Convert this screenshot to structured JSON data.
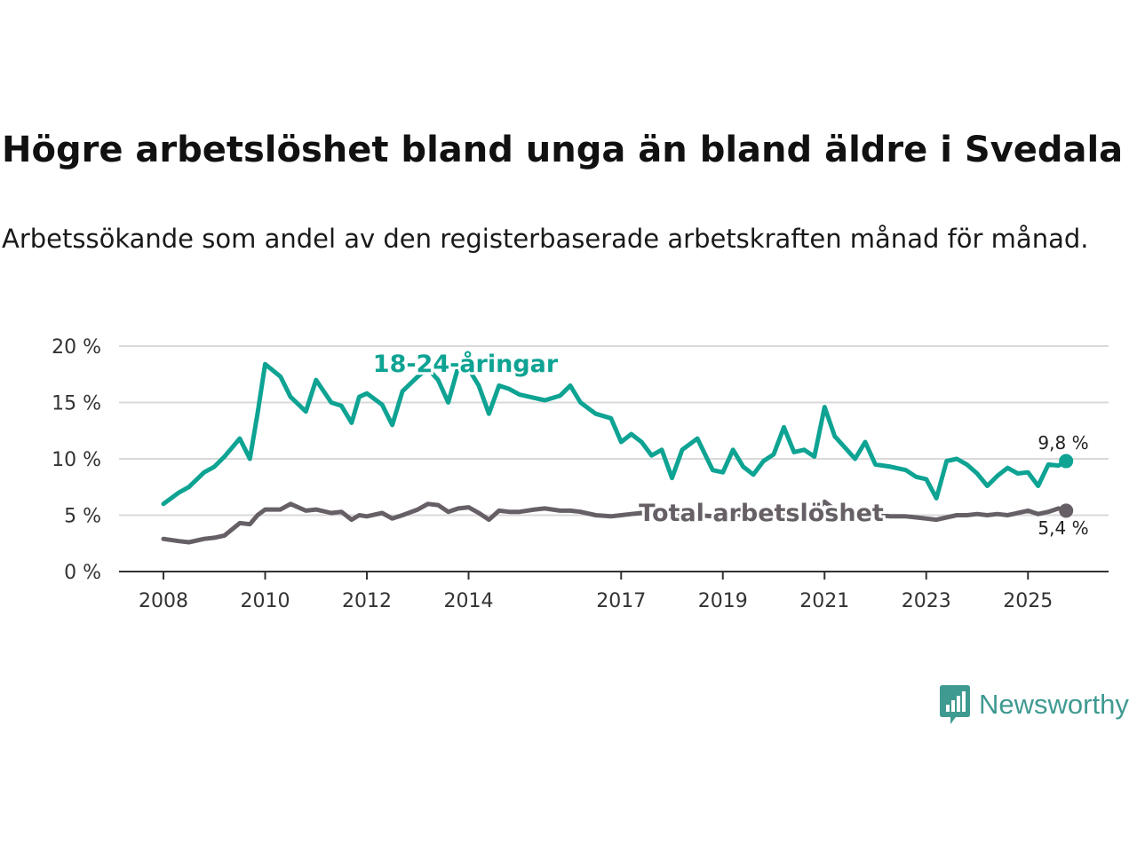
{
  "title": "Högre arbetslöshet bland unga än bland äldre i Svedala",
  "subtitle": "Arbetssökande som andel av den registerbaserade arbetskraften månad för månad.",
  "brand": {
    "name": "Newsworthy",
    "color": "#3f9a91",
    "icon": "bar-chart-speech-bubble-icon"
  },
  "chart_data": {
    "type": "line",
    "title": "Högre arbetslöshet bland unga än bland äldre i Svedala",
    "xlabel": "",
    "ylabel": "",
    "xlim": [
      2007.9,
      2026.0
    ],
    "ylim": [
      0,
      20
    ],
    "grid": true,
    "yticks": [
      0,
      5,
      10,
      15,
      20
    ],
    "ytick_labels": [
      "0 %",
      "5 %",
      "10 %",
      "15 %",
      "20 %"
    ],
    "xticks": [
      2008,
      2010,
      2012,
      2014,
      2017,
      2019,
      2021,
      2023,
      2025
    ],
    "xtick_labels": [
      "2008",
      "2010",
      "2012",
      "2014",
      "2017",
      "2019",
      "2021",
      "2023",
      "2025"
    ],
    "series": [
      {
        "name": "18-24-åringar",
        "color": "#0ea393",
        "end_label": "9,8 %",
        "x": [
          2008.0,
          2008.3,
          2008.5,
          2008.8,
          2009.0,
          2009.2,
          2009.5,
          2009.7,
          2009.85,
          2010.0,
          2010.3,
          2010.5,
          2010.8,
          2011.0,
          2011.3,
          2011.5,
          2011.7,
          2011.85,
          2012.0,
          2012.3,
          2012.5,
          2012.7,
          2013.0,
          2013.2,
          2013.4,
          2013.6,
          2013.8,
          2014.0,
          2014.2,
          2014.4,
          2014.6,
          2014.8,
          2015.0,
          2015.3,
          2015.5,
          2015.8,
          2016.0,
          2016.2,
          2016.5,
          2016.8,
          2017.0,
          2017.2,
          2017.4,
          2017.6,
          2017.8,
          2018.0,
          2018.2,
          2018.5,
          2018.8,
          2019.0,
          2019.2,
          2019.4,
          2019.6,
          2019.8,
          2020.0,
          2020.2,
          2020.4,
          2020.6,
          2020.8,
          2021.0,
          2021.2,
          2021.4,
          2021.6,
          2021.8,
          2022.0,
          2022.3,
          2022.6,
          2022.8,
          2023.0,
          2023.2,
          2023.4,
          2023.6,
          2023.8,
          2024.0,
          2024.2,
          2024.4,
          2024.6,
          2024.8,
          2025.0,
          2025.2,
          2025.4,
          2025.6,
          2025.75
        ],
        "y": [
          6.0,
          7.0,
          7.5,
          8.8,
          9.3,
          10.2,
          11.8,
          10.0,
          14.0,
          18.4,
          17.3,
          15.5,
          14.2,
          17.0,
          15.0,
          14.7,
          13.2,
          15.5,
          15.8,
          14.8,
          13.0,
          16.0,
          17.3,
          18.0,
          17.0,
          15.0,
          18.2,
          18.0,
          16.5,
          14.0,
          16.5,
          16.2,
          15.7,
          15.4,
          15.2,
          15.6,
          16.5,
          15.0,
          14.0,
          13.6,
          11.5,
          12.2,
          11.5,
          10.3,
          10.8,
          8.3,
          10.8,
          11.8,
          9.0,
          8.8,
          10.8,
          9.3,
          8.6,
          9.8,
          10.4,
          12.8,
          10.6,
          10.8,
          10.2,
          14.6,
          12.0,
          11.0,
          10.0,
          11.5,
          9.5,
          9.3,
          9.0,
          8.4,
          8.2,
          6.5,
          9.8,
          10.0,
          9.5,
          8.7,
          7.6,
          8.5,
          9.2,
          8.7,
          8.8,
          7.6,
          9.5,
          9.4,
          9.8
        ]
      },
      {
        "name": "Total arbetslöshet",
        "color": "#666066",
        "end_label": "5,4 %",
        "x": [
          2008.0,
          2008.3,
          2008.5,
          2008.8,
          2009.0,
          2009.2,
          2009.5,
          2009.7,
          2009.85,
          2010.0,
          2010.3,
          2010.5,
          2010.8,
          2011.0,
          2011.3,
          2011.5,
          2011.7,
          2011.85,
          2012.0,
          2012.3,
          2012.5,
          2012.7,
          2013.0,
          2013.2,
          2013.4,
          2013.6,
          2013.8,
          2014.0,
          2014.2,
          2014.4,
          2014.6,
          2014.8,
          2015.0,
          2015.3,
          2015.5,
          2015.8,
          2016.0,
          2016.2,
          2016.5,
          2016.8,
          2017.0,
          2017.2,
          2017.4,
          2017.6,
          2017.8,
          2018.0,
          2018.2,
          2018.5,
          2018.8,
          2019.0,
          2019.2,
          2019.4,
          2019.6,
          2019.8,
          2020.0,
          2020.2,
          2020.4,
          2020.6,
          2020.8,
          2021.0,
          2021.2,
          2021.4,
          2021.6,
          2021.8,
          2022.0,
          2022.3,
          2022.6,
          2022.8,
          2023.0,
          2023.2,
          2023.4,
          2023.6,
          2023.8,
          2024.0,
          2024.2,
          2024.4,
          2024.6,
          2024.8,
          2025.0,
          2025.2,
          2025.4,
          2025.6,
          2025.75
        ],
        "y": [
          2.9,
          2.7,
          2.6,
          2.9,
          3.0,
          3.2,
          4.3,
          4.2,
          5.0,
          5.5,
          5.5,
          6.0,
          5.4,
          5.5,
          5.2,
          5.3,
          4.6,
          5.0,
          4.9,
          5.2,
          4.7,
          5.0,
          5.5,
          6.0,
          5.9,
          5.3,
          5.6,
          5.7,
          5.2,
          4.6,
          5.4,
          5.3,
          5.3,
          5.5,
          5.6,
          5.4,
          5.4,
          5.3,
          5.0,
          4.9,
          5.0,
          5.1,
          5.2,
          5.1,
          4.9,
          4.9,
          5.0,
          5.0,
          4.9,
          5.0,
          5.1,
          5.0,
          5.0,
          5.0,
          5.1,
          5.2,
          5.3,
          5.4,
          5.3,
          6.2,
          5.5,
          5.1,
          5.0,
          5.0,
          5.0,
          4.9,
          4.9,
          4.8,
          4.7,
          4.6,
          4.8,
          5.0,
          5.0,
          5.1,
          5.0,
          5.1,
          5.0,
          5.2,
          5.4,
          5.1,
          5.3,
          5.6,
          5.4
        ]
      }
    ]
  }
}
